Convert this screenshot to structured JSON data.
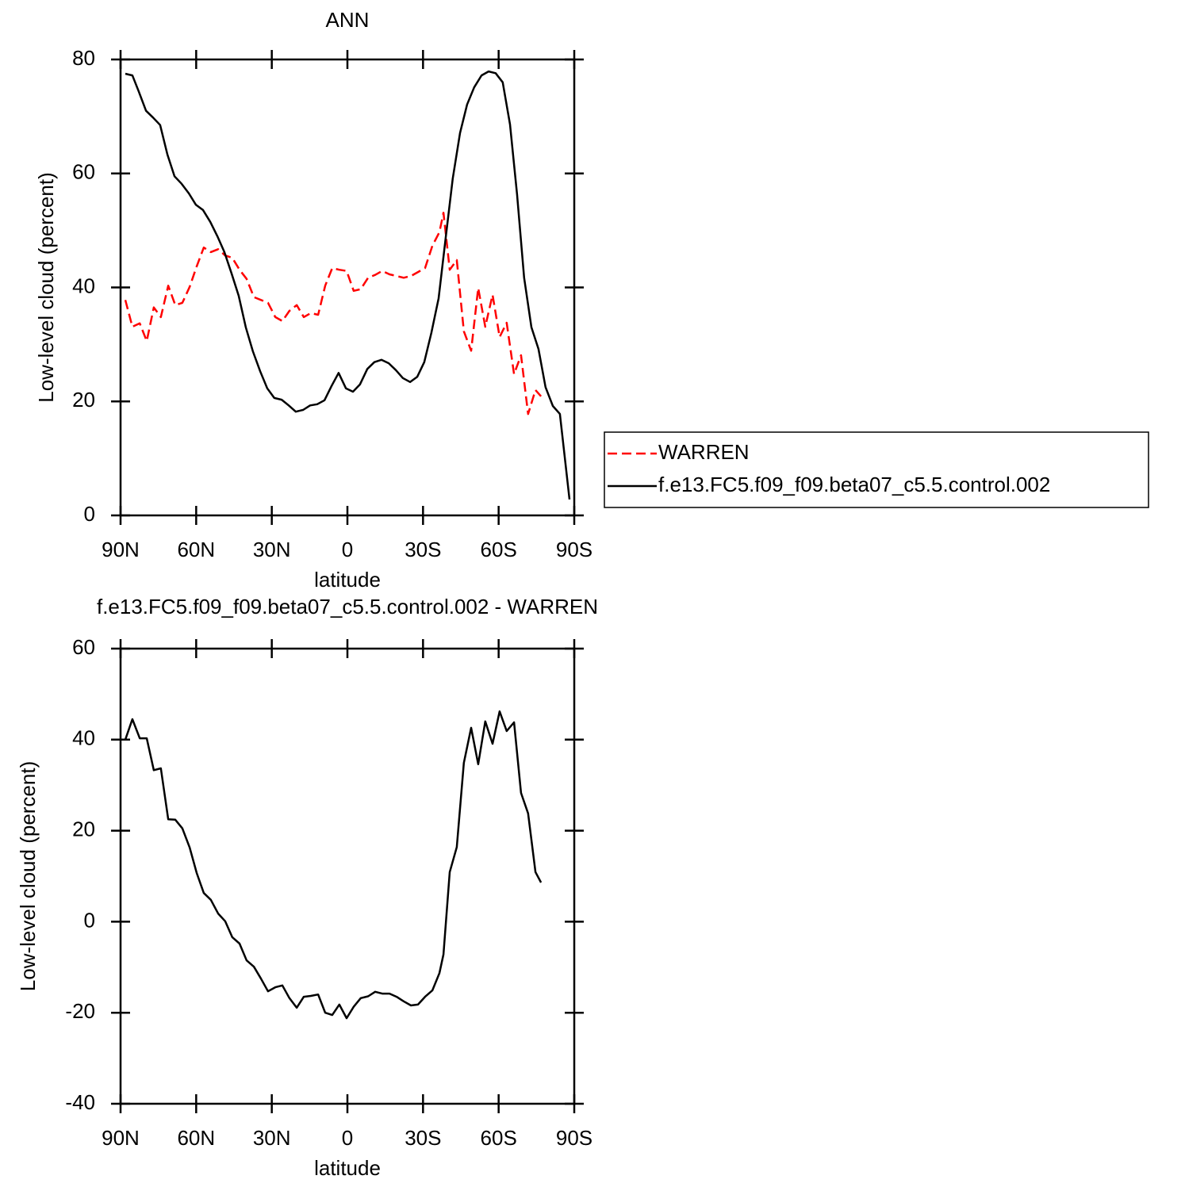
{
  "chart_data": [
    {
      "type": "line",
      "title": "ANN",
      "xlabel": "latitude",
      "ylabel": "Low-level cloud (percent)",
      "xlim": [
        90,
        -90
      ],
      "ylim": [
        0,
        80
      ],
      "xticks": [
        {
          "value": 90,
          "label": "90N"
        },
        {
          "value": 60,
          "label": "60N"
        },
        {
          "value": 30,
          "label": "30N"
        },
        0,
        {
          "value": -30,
          "label": "30S"
        },
        {
          "value": -60,
          "label": "60S"
        },
        {
          "value": -90,
          "label": "90S"
        }
      ],
      "yticks": [
        0,
        20,
        40,
        60,
        80
      ],
      "legend": "right",
      "series": [
        {
          "name": "WARREN",
          "color": "#ff0000",
          "linestyle": "dashed",
          "x": [
            88.1,
            85.3,
            82.4,
            79.6,
            76.8,
            74.0,
            71.1,
            68.3,
            65.5,
            62.6,
            59.8,
            57.0,
            54.2,
            51.3,
            48.5,
            45.7,
            42.8,
            40.0,
            37.1,
            34.3,
            31.5,
            28.6,
            25.8,
            23.0,
            20.1,
            17.3,
            14.5,
            11.6,
            8.8,
            6.0,
            3.2,
            0.3,
            -2.5,
            -5.3,
            -8.2,
            -11.0,
            -13.8,
            -16.7,
            -19.5,
            -22.3,
            -25.2,
            -28.0,
            -30.8,
            -33.7,
            -36.5,
            -38.1,
            -40.6,
            -43.4,
            -46.2,
            -49.1,
            -51.9,
            -54.7,
            -57.6,
            -60.4,
            -63.2,
            -66.1,
            -68.9,
            -71.7,
            -74.6,
            -76.8
          ],
          "values": [
            37.8,
            33.1,
            33.7,
            30.6,
            36.5,
            34.8,
            40.3,
            36.9,
            37.3,
            40.1,
            43.7,
            47.0,
            46.2,
            46.7,
            45.6,
            45.2,
            43.1,
            41.5,
            38.3,
            37.8,
            37.3,
            34.8,
            34.1,
            35.9,
            36.9,
            34.8,
            35.5,
            35.2,
            40.3,
            43.4,
            43.1,
            42.9,
            39.4,
            39.7,
            41.7,
            42.2,
            42.9,
            42.3,
            42.0,
            41.7,
            42.0,
            42.7,
            43.4,
            47.3,
            49.7,
            53.1,
            43.1,
            44.8,
            32.3,
            28.9,
            39.9,
            33.1,
            38.7,
            31.3,
            33.8,
            24.8,
            28.1,
            17.8,
            22.0,
            20.9
          ]
        },
        {
          "name": "f.e13.FC5.f09_f09.beta07_c5.5.control.002",
          "color": "#000000",
          "linestyle": "solid",
          "x": [
            88.1,
            85.3,
            82.8,
            79.9,
            77.1,
            74.3,
            71.4,
            68.6,
            65.8,
            62.9,
            60.1,
            57.3,
            54.4,
            51.6,
            48.8,
            45.9,
            43.1,
            40.3,
            37.5,
            34.6,
            31.8,
            29.0,
            26.1,
            23.3,
            20.5,
            17.6,
            14.8,
            12.0,
            9.1,
            6.3,
            3.5,
            0.6,
            -2.2,
            -5.0,
            -7.9,
            -10.7,
            -13.5,
            -16.4,
            -19.2,
            -22.0,
            -24.9,
            -27.7,
            -30.5,
            -33.3,
            -36.2,
            -39.0,
            -41.8,
            -44.7,
            -47.5,
            -50.3,
            -53.2,
            -56.0,
            -58.8,
            -61.6,
            -64.5,
            -67.3,
            -70.1,
            -73.0,
            -75.8,
            -78.6,
            -81.5,
            -84.3,
            -88.1
          ],
          "values": [
            77.5,
            77.2,
            74.4,
            71.0,
            69.8,
            68.5,
            63.3,
            59.5,
            58.2,
            56.5,
            54.5,
            53.6,
            51.5,
            49.0,
            46.2,
            42.4,
            38.5,
            33.0,
            28.8,
            25.3,
            22.3,
            20.6,
            20.3,
            19.3,
            18.2,
            18.5,
            19.3,
            19.5,
            20.2,
            22.7,
            25.0,
            22.3,
            21.7,
            23.0,
            25.7,
            26.9,
            27.3,
            26.7,
            25.5,
            24.1,
            23.4,
            24.3,
            26.9,
            32.0,
            38.1,
            48.7,
            59.1,
            67.1,
            72.1,
            75.1,
            77.2,
            77.9,
            77.6,
            76.0,
            68.6,
            56.3,
            41.7,
            33.0,
            29.2,
            22.5,
            19.2,
            17.8,
            2.8
          ]
        }
      ]
    },
    {
      "type": "line",
      "title": "f.e13.FC5.f09_f09.beta07_c5.5.control.002 - WARREN",
      "xlabel": "latitude",
      "ylabel": "Low-level cloud (percent)",
      "xlim": [
        90,
        -90
      ],
      "ylim": [
        -40,
        60
      ],
      "xticks": [
        {
          "value": 90,
          "label": "90N"
        },
        {
          "value": 60,
          "label": "60N"
        },
        {
          "value": 30,
          "label": "30N"
        },
        0,
        {
          "value": -30,
          "label": "30S"
        },
        {
          "value": -60,
          "label": "60S"
        },
        {
          "value": -90,
          "label": "90S"
        }
      ],
      "yticks": [
        -40,
        -20,
        0,
        20,
        40,
        60
      ],
      "series": [
        {
          "color": "#000000",
          "linestyle": "solid",
          "x": [
            88.1,
            85.3,
            82.4,
            79.6,
            76.8,
            74.0,
            71.1,
            68.3,
            65.5,
            62.6,
            59.8,
            57.0,
            54.2,
            51.3,
            48.5,
            45.7,
            42.8,
            40.0,
            37.1,
            34.3,
            31.5,
            28.6,
            25.8,
            23.0,
            20.1,
            17.3,
            14.5,
            11.6,
            8.8,
            6.0,
            3.2,
            0.3,
            -2.5,
            -5.3,
            -8.2,
            -11.0,
            -13.8,
            -16.7,
            -19.5,
            -22.3,
            -25.2,
            -28.0,
            -30.8,
            -33.7,
            -36.5,
            -38.1,
            -40.6,
            -43.4,
            -46.2,
            -49.1,
            -51.9,
            -54.7,
            -57.6,
            -60.4,
            -63.2,
            -66.1,
            -68.9,
            -71.7,
            -74.6,
            -76.8
          ],
          "values": [
            40.0,
            44.5,
            40.3,
            40.3,
            33.3,
            33.7,
            22.5,
            22.4,
            20.5,
            16.3,
            10.7,
            6.3,
            4.8,
            1.8,
            0.1,
            -3.4,
            -4.8,
            -8.5,
            -9.9,
            -12.5,
            -15.3,
            -14.4,
            -14.0,
            -16.8,
            -18.9,
            -16.5,
            -16.3,
            -16.0,
            -20.0,
            -20.5,
            -18.2,
            -21.2,
            -18.7,
            -16.8,
            -16.4,
            -15.4,
            -15.8,
            -15.8,
            -16.5,
            -17.5,
            -18.4,
            -18.2,
            -16.5,
            -15.1,
            -11.3,
            -7.2,
            10.9,
            16.4,
            34.9,
            42.6,
            34.6,
            44.0,
            39.1,
            46.2,
            41.9,
            43.8,
            28.3,
            23.8,
            10.9,
            8.6
          ]
        }
      ]
    }
  ]
}
